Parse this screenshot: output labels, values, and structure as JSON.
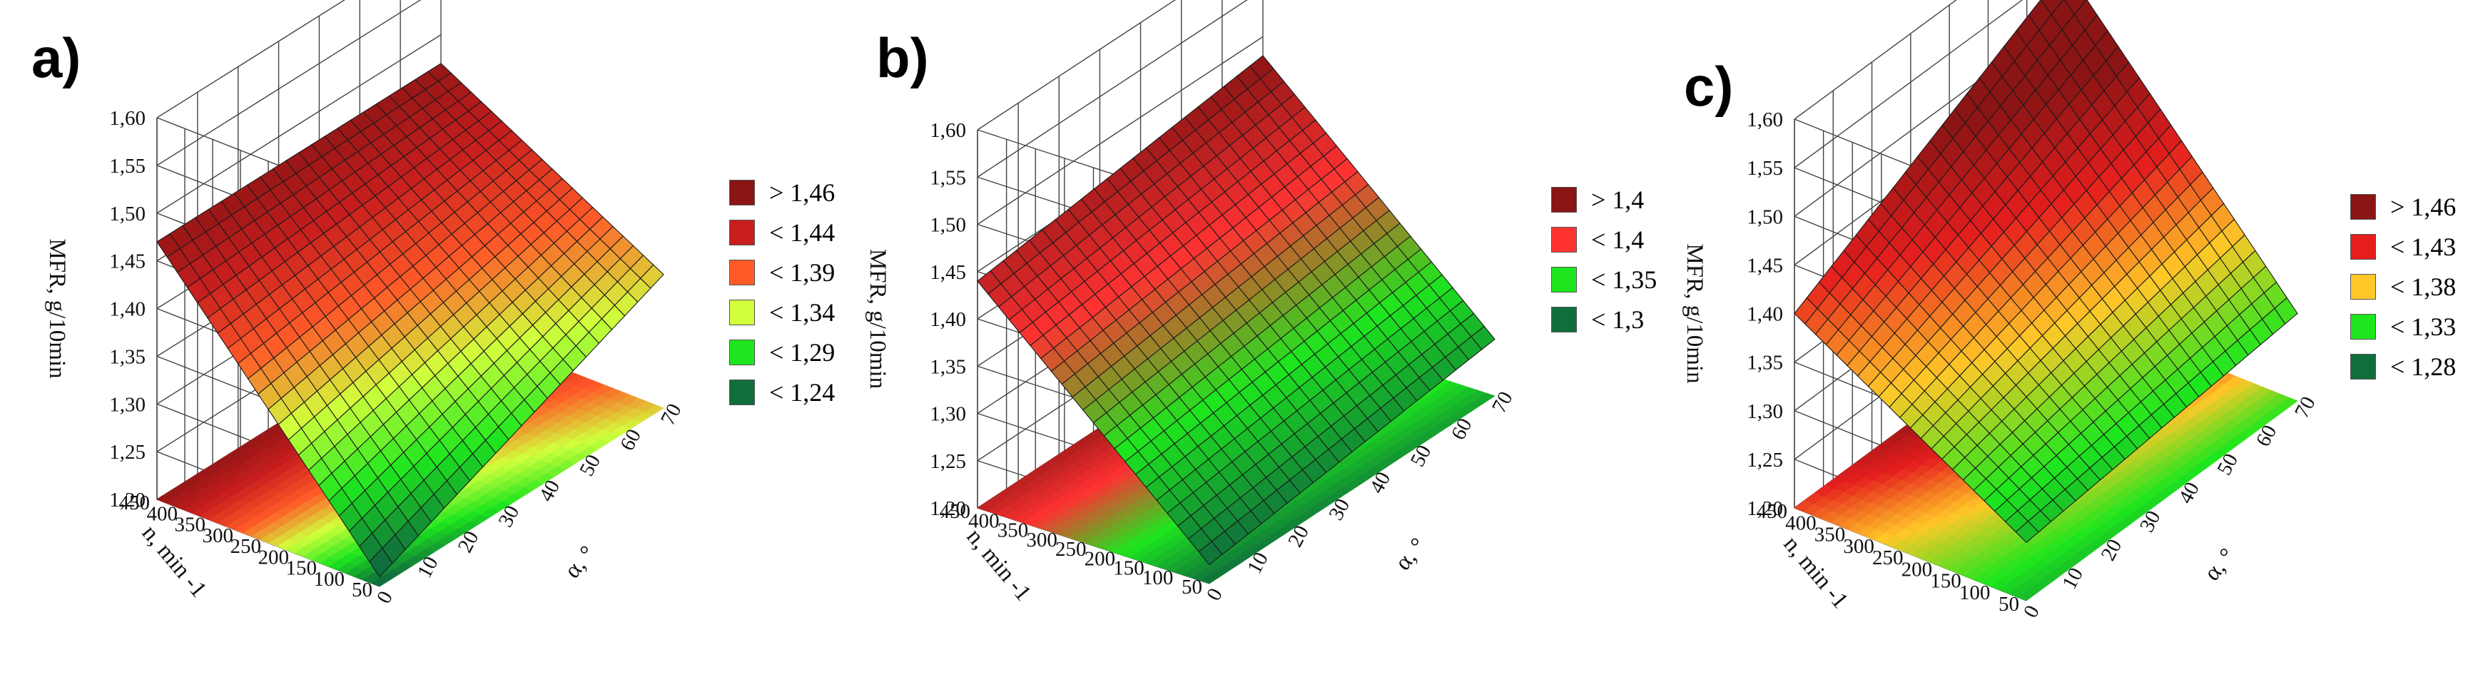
{
  "chart_data": [
    {
      "label": "a)",
      "type": "surface3d",
      "zlabel": "MFR, g/10min",
      "xlabel": "α, °",
      "ylabel": "n, min⁻¹",
      "ylabel_display": "n, min -1",
      "zticks": [
        "1,20",
        "1,25",
        "1,30",
        "1,35",
        "1,40",
        "1,45",
        "1,50",
        "1,55",
        "1,60"
      ],
      "xticks": [
        "0",
        "10",
        "20",
        "30",
        "40",
        "50",
        "60",
        "70"
      ],
      "yticks": [
        "50",
        "100",
        "150",
        "200",
        "250",
        "300",
        "350",
        "400",
        "450"
      ],
      "zlim": [
        1.2,
        1.6
      ],
      "xlim": [
        0,
        70
      ],
      "ylim": [
        50,
        450
      ],
      "corner_values": {
        "alpha0_n450": 1.47,
        "alpha70_n450": 1.47,
        "alpha0_n50": 1.21,
        "alpha70_n50": 1.34
      },
      "legend": [
        {
          "text": "> 1,46",
          "color": "#8b1414"
        },
        {
          "text": "< 1,44",
          "color": "#c81e1e"
        },
        {
          "text": "< 1,39",
          "color": "#ff5a28"
        },
        {
          "text": "< 1,34",
          "color": "#d2ff3c"
        },
        {
          "text": "< 1,29",
          "color": "#1ee61e"
        },
        {
          "text": "< 1,24",
          "color": "#0f6e3c"
        }
      ]
    },
    {
      "label": "b)",
      "type": "surface3d",
      "zlabel": "MFR, g/10min",
      "xlabel": "α, °",
      "ylabel": "n, min⁻¹",
      "ylabel_display": "n, min -1",
      "zticks": [
        "1,20",
        "1,25",
        "1,30",
        "1,35",
        "1,40",
        "1,45",
        "1,50",
        "1,55",
        "1,60"
      ],
      "xticks": [
        "0",
        "10",
        "20",
        "30",
        "40",
        "50",
        "60",
        "70"
      ],
      "yticks": [
        "50",
        "100",
        "150",
        "200",
        "250",
        "300",
        "350",
        "400",
        "450"
      ],
      "zlim": [
        1.2,
        1.6
      ],
      "xlim": [
        0,
        70
      ],
      "ylim": [
        50,
        450
      ],
      "corner_values": {
        "alpha0_n450": 1.44,
        "alpha70_n450": 1.48,
        "alpha0_n50": 1.22,
        "alpha70_n50": 1.26
      },
      "legend": [
        {
          "text": "> 1,4",
          "color": "#8b1414"
        },
        {
          "text": "< 1,4",
          "color": "#ff3232"
        },
        {
          "text": "< 1,35",
          "color": "#1ee61e"
        },
        {
          "text": "< 1,3",
          "color": "#0f6e3c"
        }
      ]
    },
    {
      "label": "c)",
      "type": "surface3d",
      "zlabel": "MFR, g/10min",
      "xlabel": "α, °",
      "ylabel": "n, min⁻¹",
      "ylabel_display": "n, min -1",
      "zticks": [
        "1,20",
        "1,25",
        "1,30",
        "1,35",
        "1,40",
        "1,45",
        "1,50",
        "1,55",
        "1,60"
      ],
      "xticks": [
        "0",
        "10",
        "20",
        "30",
        "40",
        "50",
        "60",
        "70"
      ],
      "yticks": [
        "50",
        "100",
        "150",
        "200",
        "250",
        "300",
        "350",
        "400",
        "450"
      ],
      "zlim": [
        1.2,
        1.6
      ],
      "xlim": [
        0,
        70
      ],
      "ylim": [
        50,
        450
      ],
      "corner_values": {
        "alpha0_n450": 1.4,
        "alpha70_n450": 1.55,
        "alpha0_n50": 1.26,
        "alpha70_n50": 1.29
      },
      "legend": [
        {
          "text": "> 1,46",
          "color": "#8b1414"
        },
        {
          "text": "< 1,43",
          "color": "#e61e1e"
        },
        {
          "text": "< 1,38",
          "color": "#ffc828"
        },
        {
          "text": "< 1,33",
          "color": "#1ee61e"
        },
        {
          "text": "< 1,28",
          "color": "#0f6e3c"
        }
      ]
    }
  ]
}
